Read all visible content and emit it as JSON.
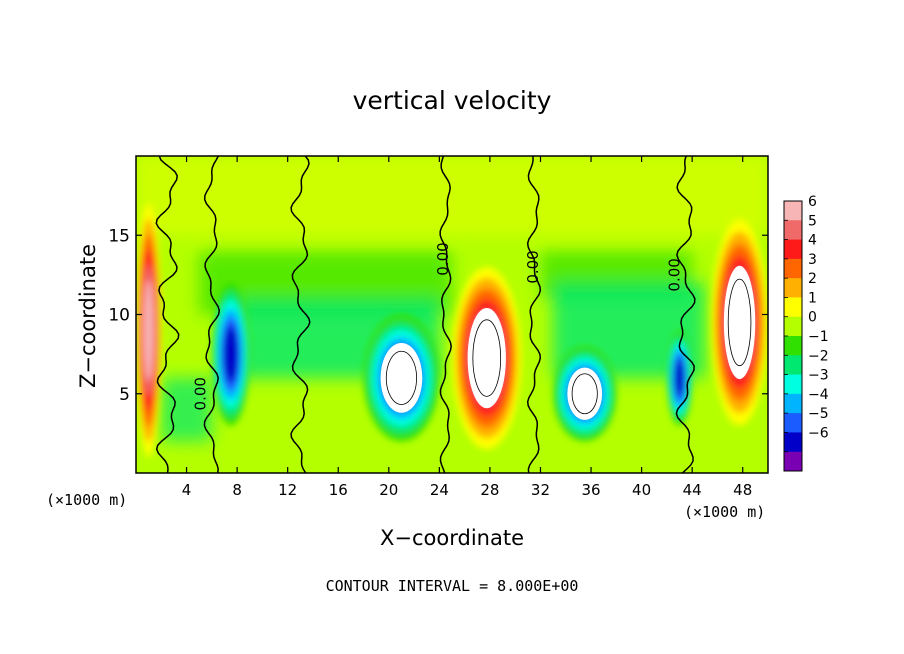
{
  "chart_data": {
    "type": "heatmap",
    "title": "vertical velocity",
    "xlabel": "X−coordinate",
    "ylabel": "Z−coordinate",
    "x_scale_label": "(×1000 m)",
    "x_scale_label_right": "(×1000 m)",
    "xlim": [
      0,
      50
    ],
    "ylim": [
      0,
      20
    ],
    "xticks": [
      4,
      8,
      12,
      16,
      20,
      24,
      28,
      32,
      36,
      40,
      44,
      48
    ],
    "yticks": [
      5,
      10,
      15
    ],
    "colorbar": {
      "ticks": [
        6,
        5,
        4,
        3,
        2,
        1,
        0,
        -1,
        -2,
        -3,
        -4,
        -5,
        -6
      ],
      "tick_labels": [
        "6",
        "5",
        "4",
        "3",
        "2",
        "1",
        "0",
        "−1",
        "−2",
        "−3",
        "−4",
        "−5",
        "−6"
      ],
      "colors": [
        "#f7b5b5",
        "#f06a6a",
        "#ff1a1a",
        "#ff6600",
        "#ffb000",
        "#ffff00",
        "#b4ff00",
        "#30e000",
        "#00e870",
        "#00ffe0",
        "#00b4ff",
        "#1a5cff",
        "#0000c8",
        "#7a00b4"
      ]
    },
    "contour_labels": [
      {
        "text": "0.00",
        "x": 5.5,
        "y": 5.0
      },
      {
        "text": "0.00",
        "x": 24.7,
        "y": 13.5
      },
      {
        "text": "0.00",
        "x": 31.8,
        "y": 13.0
      },
      {
        "text": "0.00",
        "x": 43.0,
        "y": 12.5
      }
    ],
    "features": [
      {
        "kind": "updraft",
        "x_range": [
          0,
          2
        ],
        "z_range": [
          1,
          17
        ],
        "max": 6
      },
      {
        "kind": "updraft",
        "x_range": [
          25,
          30.5
        ],
        "z_range": [
          1.5,
          13
        ],
        "max": 8
      },
      {
        "kind": "updraft",
        "x_range": [
          45.5,
          50
        ],
        "z_range": [
          3,
          16
        ],
        "max": 8
      },
      {
        "kind": "downdraft",
        "x_range": [
          6,
          9
        ],
        "z_range": [
          3,
          12
        ],
        "min": -6
      },
      {
        "kind": "downdraft",
        "x_range": [
          18,
          24
        ],
        "z_range": [
          2,
          10
        ],
        "min": -8
      },
      {
        "kind": "downdraft",
        "x_range": [
          33,
          38
        ],
        "z_range": [
          2,
          8
        ],
        "min": -8
      },
      {
        "kind": "downdraft",
        "x_range": [
          42,
          44
        ],
        "z_range": [
          3,
          9
        ],
        "min": -6
      }
    ]
  },
  "footer": "CONTOUR INTERVAL = 8.000E+00"
}
